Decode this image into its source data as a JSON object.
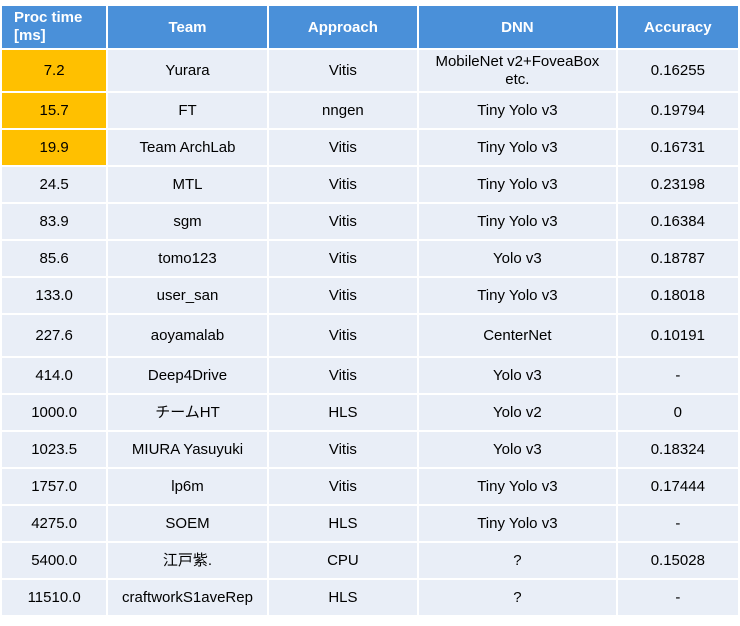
{
  "headers": {
    "proc_line1": "Proc time",
    "proc_line2": "[ms]",
    "team": "Team",
    "approach": "Approach",
    "dnn": "DNN",
    "accuracy": "Accuracy"
  },
  "rows": [
    {
      "time": "7.2",
      "team": "Yurara",
      "approach": "Vitis",
      "dnn_line1": "MobileNet v2+FoveaBox",
      "dnn_line2": "etc.",
      "accuracy": "0.16255",
      "highlight": true
    },
    {
      "time": "15.7",
      "team": "FT",
      "approach": "nngen",
      "dnn": "Tiny Yolo v3",
      "accuracy": "0.19794",
      "highlight": true
    },
    {
      "time": "19.9",
      "team": "Team ArchLab",
      "approach": "Vitis",
      "dnn": "Tiny Yolo v3",
      "accuracy": "0.16731",
      "highlight": true
    },
    {
      "time": "24.5",
      "team": "MTL",
      "approach": "Vitis",
      "dnn": "Tiny Yolo v3",
      "accuracy": "0.23198"
    },
    {
      "time": "83.9",
      "team": "sgm",
      "approach": "Vitis",
      "dnn": "Tiny Yolo v3",
      "accuracy": "0.16384"
    },
    {
      "time": "85.6",
      "team": "tomo123",
      "approach": "Vitis",
      "dnn": "Yolo v3",
      "accuracy": "0.18787"
    },
    {
      "time": "133.0",
      "team": "user_san",
      "approach": "Vitis",
      "dnn": "Tiny Yolo v3",
      "accuracy": "0.18018"
    },
    {
      "time": "227.6",
      "team": "aoyamalab",
      "approach": "Vitis",
      "dnn": "CenterNet",
      "accuracy": "0.10191"
    },
    {
      "time": "414.0",
      "team": "Deep4Drive",
      "approach": "Vitis",
      "dnn": "Yolo v3",
      "accuracy": "-"
    },
    {
      "time": "1000.0",
      "team": "チームHT",
      "approach": "HLS",
      "dnn": "Yolo v2",
      "accuracy": "0"
    },
    {
      "time": "1023.5",
      "team": "MIURA Yasuyuki",
      "approach": "Vitis",
      "dnn": "Yolo v3",
      "accuracy": "0.18324"
    },
    {
      "time": "1757.0",
      "team": "lp6m",
      "approach": "Vitis",
      "dnn": "Tiny Yolo v3",
      "accuracy": "0.17444"
    },
    {
      "time": "4275.0",
      "team": "SOEM",
      "approach": "HLS",
      "dnn": "Tiny Yolo v3",
      "accuracy": "-"
    },
    {
      "time": "5400.0",
      "team": "江戸紫.",
      "approach": "CPU",
      "dnn": "?",
      "accuracy": "0.15028"
    },
    {
      "time": "11510.0",
      "team": "craftworkS1aveRep",
      "approach": "HLS",
      "dnn": "?",
      "accuracy": "-"
    }
  ],
  "colors": {
    "header_bg": "#4a90d9",
    "cell_bg": "#e9eef7",
    "highlight_bg": "#ffc000"
  }
}
